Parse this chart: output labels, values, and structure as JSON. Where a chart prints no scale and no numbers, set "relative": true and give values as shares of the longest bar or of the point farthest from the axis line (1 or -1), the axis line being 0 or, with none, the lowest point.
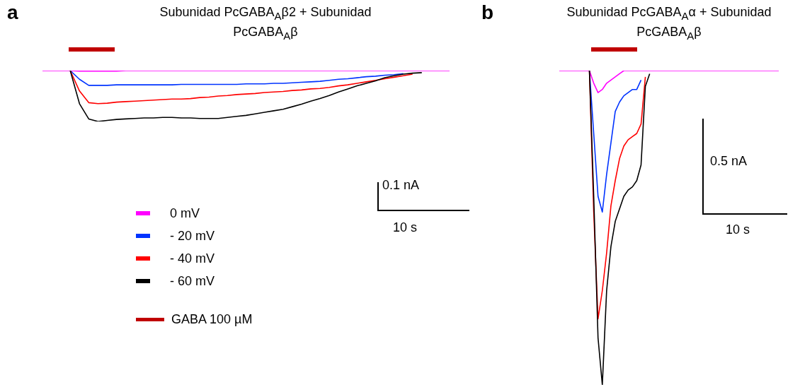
{
  "chart_data": [
    {
      "type": "line",
      "title": "Subunidad PcGABA$_{A}$β2 + Subunidad PcGABA$_{A}$β",
      "relative": true,
      "legend": "bottom left",
      "annotations": [
        "a",
        "0.1 nA",
        "10 s",
        "GABA 100 µM"
      ],
      "categories": [
        null,
        null,
        null,
        null,
        null,
        null,
        null,
        null,
        null,
        null,
        null,
        null,
        null,
        null,
        null,
        null,
        null,
        null,
        null,
        null,
        null,
        null,
        null,
        null,
        null,
        null,
        null,
        null,
        null,
        null,
        null,
        null,
        null,
        null,
        null,
        null,
        null,
        null,
        null,
        null,
        null,
        null,
        null,
        null,
        null
      ],
      "series": [
        {
          "name": "0 mV",
          "color": "#ff00ff",
          "values": [
            1,
            1,
            1,
            1,
            0.99,
            0.99,
            0.99,
            0.99,
            0.99,
            1,
            1,
            1,
            1,
            1,
            1,
            1,
            1,
            1,
            1,
            1,
            1,
            1,
            1,
            1,
            1,
            1,
            1,
            1,
            1,
            1,
            1,
            1,
            1,
            1,
            1,
            1,
            1,
            1,
            1,
            1,
            1,
            1,
            1,
            1,
            1
          ]
        },
        {
          "name": "- 20 mV",
          "color": "#0033ff",
          "values": [
            null,
            null,
            null,
            1,
            0.83,
            0.71,
            0.71,
            0.71,
            0.72,
            0.72,
            0.72,
            0.72,
            0.72,
            0.72,
            0.72,
            0.73,
            0.73,
            0.73,
            0.73,
            0.73,
            0.73,
            0.73,
            0.74,
            0.74,
            0.74,
            0.75,
            0.75,
            0.76,
            0.77,
            0.78,
            0.79,
            0.81,
            0.83,
            0.84,
            0.86,
            0.88,
            0.89,
            0.91,
            0.92,
            0.94,
            null,
            null,
            null,
            null,
            null
          ]
        },
        {
          "name": "- 40 mV",
          "color": "#ff0000",
          "values": [
            null,
            null,
            null,
            1,
            0.6,
            0.37,
            0.35,
            0.36,
            0.38,
            0.39,
            0.4,
            0.41,
            0.42,
            0.43,
            0.44,
            0.44,
            0.45,
            0.47,
            0.48,
            0.5,
            0.51,
            0.53,
            0.54,
            0.55,
            0.57,
            0.58,
            0.59,
            0.61,
            0.62,
            0.64,
            0.65,
            0.67,
            0.7,
            0.72,
            0.75,
            0.78,
            0.81,
            0.84,
            0.87,
            0.9,
            0.93,
            null,
            null,
            null,
            null
          ]
        },
        {
          "name": "- 60 mV",
          "color": "#000000",
          "values": [
            null,
            null,
            null,
            1,
            0.35,
            0.05,
            0,
            0.02,
            0.04,
            0.05,
            0.06,
            0.07,
            0.07,
            0.08,
            0.08,
            0.07,
            0.07,
            0.06,
            0.06,
            0.06,
            0.08,
            0.1,
            0.12,
            0.15,
            0.18,
            0.21,
            0.24,
            0.29,
            0.34,
            0.4,
            0.45,
            0.51,
            0.58,
            0.64,
            0.7,
            0.75,
            0.8,
            0.86,
            0.9,
            0.93,
            0.95,
            0.96,
            null,
            null,
            null
          ]
        }
      ]
    },
    {
      "type": "line",
      "title": "Subunidad PcGABA$_{A}$α + Subunidad PcGABA$_{A}$β",
      "relative": true,
      "annotations": [
        "b",
        "0.5 nA",
        "10 s"
      ],
      "categories": [
        null,
        null,
        null,
        null,
        null,
        null,
        null,
        null,
        null,
        null,
        null,
        null,
        null,
        null,
        null,
        null,
        null,
        null,
        null,
        null,
        null,
        null,
        null,
        null,
        null,
        null,
        null,
        null,
        null,
        null,
        null,
        null,
        null,
        null,
        null,
        null,
        null,
        null,
        null,
        null,
        null,
        null,
        null,
        null,
        null,
        null,
        null,
        null,
        null,
        null,
        null,
        null
      ],
      "series": [
        {
          "color": "#ff00ff",
          "values": [
            1,
            1,
            1,
            1,
            1,
            1,
            1,
            1,
            0.96,
            0.93,
            0.94,
            0.96,
            0.97,
            0.98,
            0.99,
            1,
            1,
            1,
            1,
            1,
            1,
            1,
            1,
            1,
            1,
            1,
            1,
            1,
            1,
            1,
            1,
            1,
            1,
            1,
            1,
            1,
            1,
            1,
            1,
            1,
            1,
            1,
            1,
            1,
            1,
            1,
            1,
            1,
            1,
            1,
            1,
            1
          ]
        },
        {
          "color": "#0033ff",
          "values": [
            null,
            null,
            null,
            null,
            null,
            null,
            null,
            1,
            0.8,
            0.6,
            0.55,
            0.67,
            0.77,
            0.87,
            0.9,
            0.92,
            0.93,
            0.94,
            0.94,
            0.97,
            null,
            null,
            null,
            null,
            null,
            null,
            null,
            null,
            null,
            null,
            null,
            null,
            null,
            null,
            null,
            null,
            null,
            null,
            null,
            null,
            null,
            null,
            null,
            null,
            null,
            null,
            null,
            null,
            null,
            null,
            null,
            null
          ]
        },
        {
          "color": "#ff0000",
          "values": [
            null,
            null,
            null,
            null,
            null,
            null,
            null,
            1,
            0.55,
            0.21,
            0.3,
            0.42,
            0.57,
            0.65,
            0.72,
            0.76,
            0.78,
            0.79,
            0.8,
            0.83,
            0.98,
            null,
            null,
            null,
            null,
            null,
            null,
            null,
            null,
            null,
            null,
            null,
            null,
            null,
            null,
            null,
            null,
            null,
            null,
            null,
            null,
            null,
            null,
            null,
            null,
            null,
            null,
            null,
            null,
            null,
            null,
            null
          ]
        },
        {
          "color": "#000000",
          "values": [
            null,
            null,
            null,
            null,
            null,
            null,
            null,
            1,
            0.6,
            0.15,
            0,
            0.3,
            0.44,
            0.52,
            0.56,
            0.6,
            0.62,
            0.63,
            0.65,
            0.7,
            0.95,
            0.99,
            null,
            null,
            null,
            null,
            null,
            null,
            null,
            null,
            null,
            null,
            null,
            null,
            null,
            null,
            null,
            null,
            null,
            null,
            null,
            null,
            null,
            null,
            null,
            null,
            null,
            null,
            null,
            null,
            null,
            null
          ]
        }
      ]
    }
  ]
}
